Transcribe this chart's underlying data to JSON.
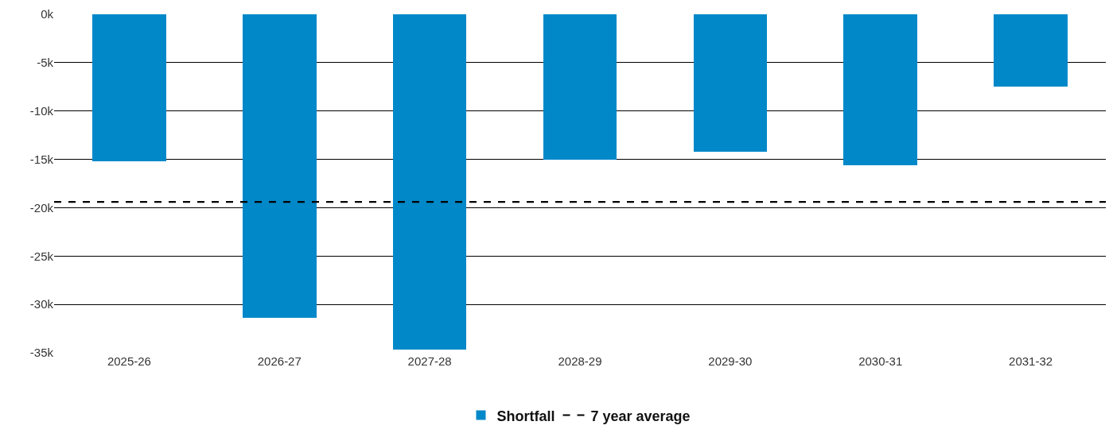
{
  "chart_data": {
    "type": "bar",
    "categories": [
      "2025-26",
      "2026-27",
      "2027-28",
      "2028-29",
      "2029-30",
      "2030-31",
      "2031-32"
    ],
    "series": [
      {
        "name": "Shortfall",
        "color": "#0088c9",
        "values": [
          -15.2,
          -31.4,
          -34.7,
          -15.0,
          -14.2,
          -15.6,
          -7.5
        ]
      }
    ],
    "ylim": [
      -35,
      0
    ],
    "yticks": [
      {
        "value": 0,
        "label": "0k"
      },
      {
        "value": -5,
        "label": "-5k"
      },
      {
        "value": -10,
        "label": "-10k"
      },
      {
        "value": -15,
        "label": "-15k"
      },
      {
        "value": -20,
        "label": "-20k"
      },
      {
        "value": -25,
        "label": "-25k"
      },
      {
        "value": -30,
        "label": "-30k"
      },
      {
        "value": -35,
        "label": "-35k"
      }
    ],
    "ref_lines": [
      {
        "axis": "y",
        "value": -19.4,
        "label": "7 year average",
        "color": "#000000",
        "line_style": "dashed"
      }
    ],
    "grid": "y",
    "legend": "bottom"
  }
}
